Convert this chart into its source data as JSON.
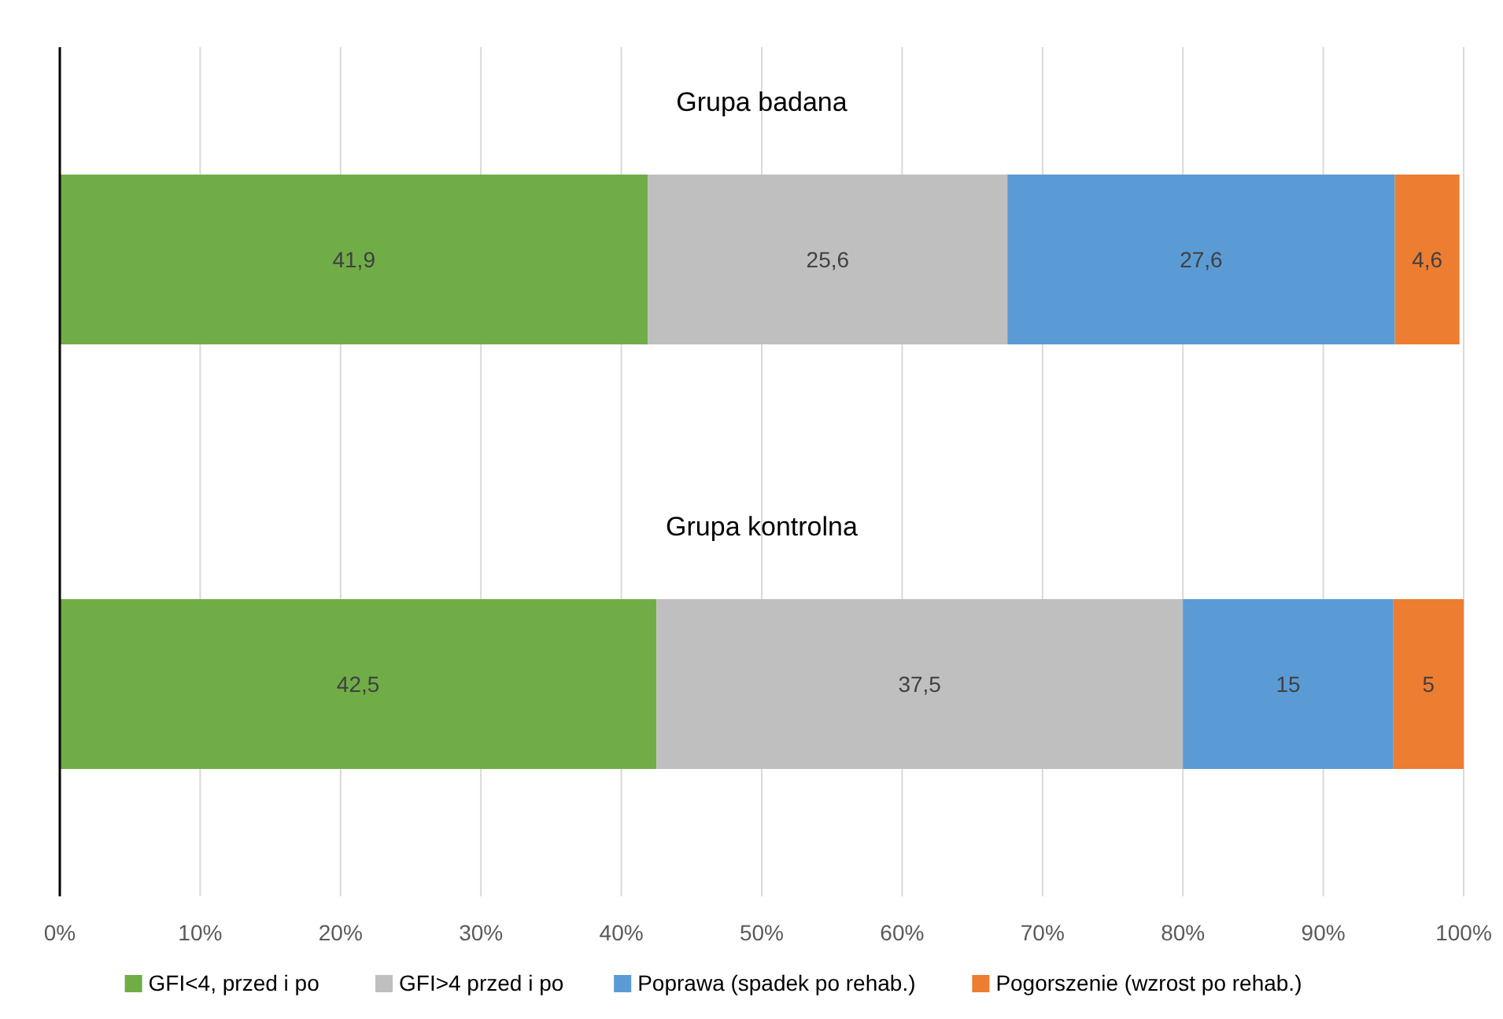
{
  "chart_data": {
    "type": "bar",
    "orientation": "horizontal",
    "stacked": true,
    "categories": [
      "Grupa badana",
      "Grupa kontrolna"
    ],
    "series": [
      {
        "name": "GFI<4, przed i po",
        "color": "#70ad47",
        "values": [
          41.9,
          42.5
        ],
        "value_labels": [
          "41,9",
          "42,5"
        ]
      },
      {
        "name": "GFI>4 przed i po",
        "color": "#bfbfbf",
        "values": [
          25.6,
          37.5
        ],
        "value_labels": [
          "25,6",
          "37,5"
        ]
      },
      {
        "name": "Poprawa (spadek po rehab.)",
        "color": "#5b9bd5",
        "values": [
          27.6,
          15
        ],
        "value_labels": [
          "27,6",
          "15"
        ]
      },
      {
        "name": "Pogorszenie (wzrost po rehab.)",
        "color": "#ed7d31",
        "values": [
          4.6,
          5
        ],
        "value_labels": [
          "4,6",
          "5"
        ]
      }
    ],
    "xlim": [
      0,
      100
    ],
    "xticks": [
      {
        "value": 0,
        "label": "0%"
      },
      {
        "value": 10,
        "label": "10%"
      },
      {
        "value": 20,
        "label": "20%"
      },
      {
        "value": 30,
        "label": "30%"
      },
      {
        "value": 40,
        "label": "40%"
      },
      {
        "value": 50,
        "label": "50%"
      },
      {
        "value": 60,
        "label": "60%"
      },
      {
        "value": 70,
        "label": "70%"
      },
      {
        "value": 80,
        "label": "80%"
      },
      {
        "value": 90,
        "label": "90%"
      },
      {
        "value": 100,
        "label": "100%"
      }
    ],
    "grid": "x",
    "legend": "bottom"
  }
}
